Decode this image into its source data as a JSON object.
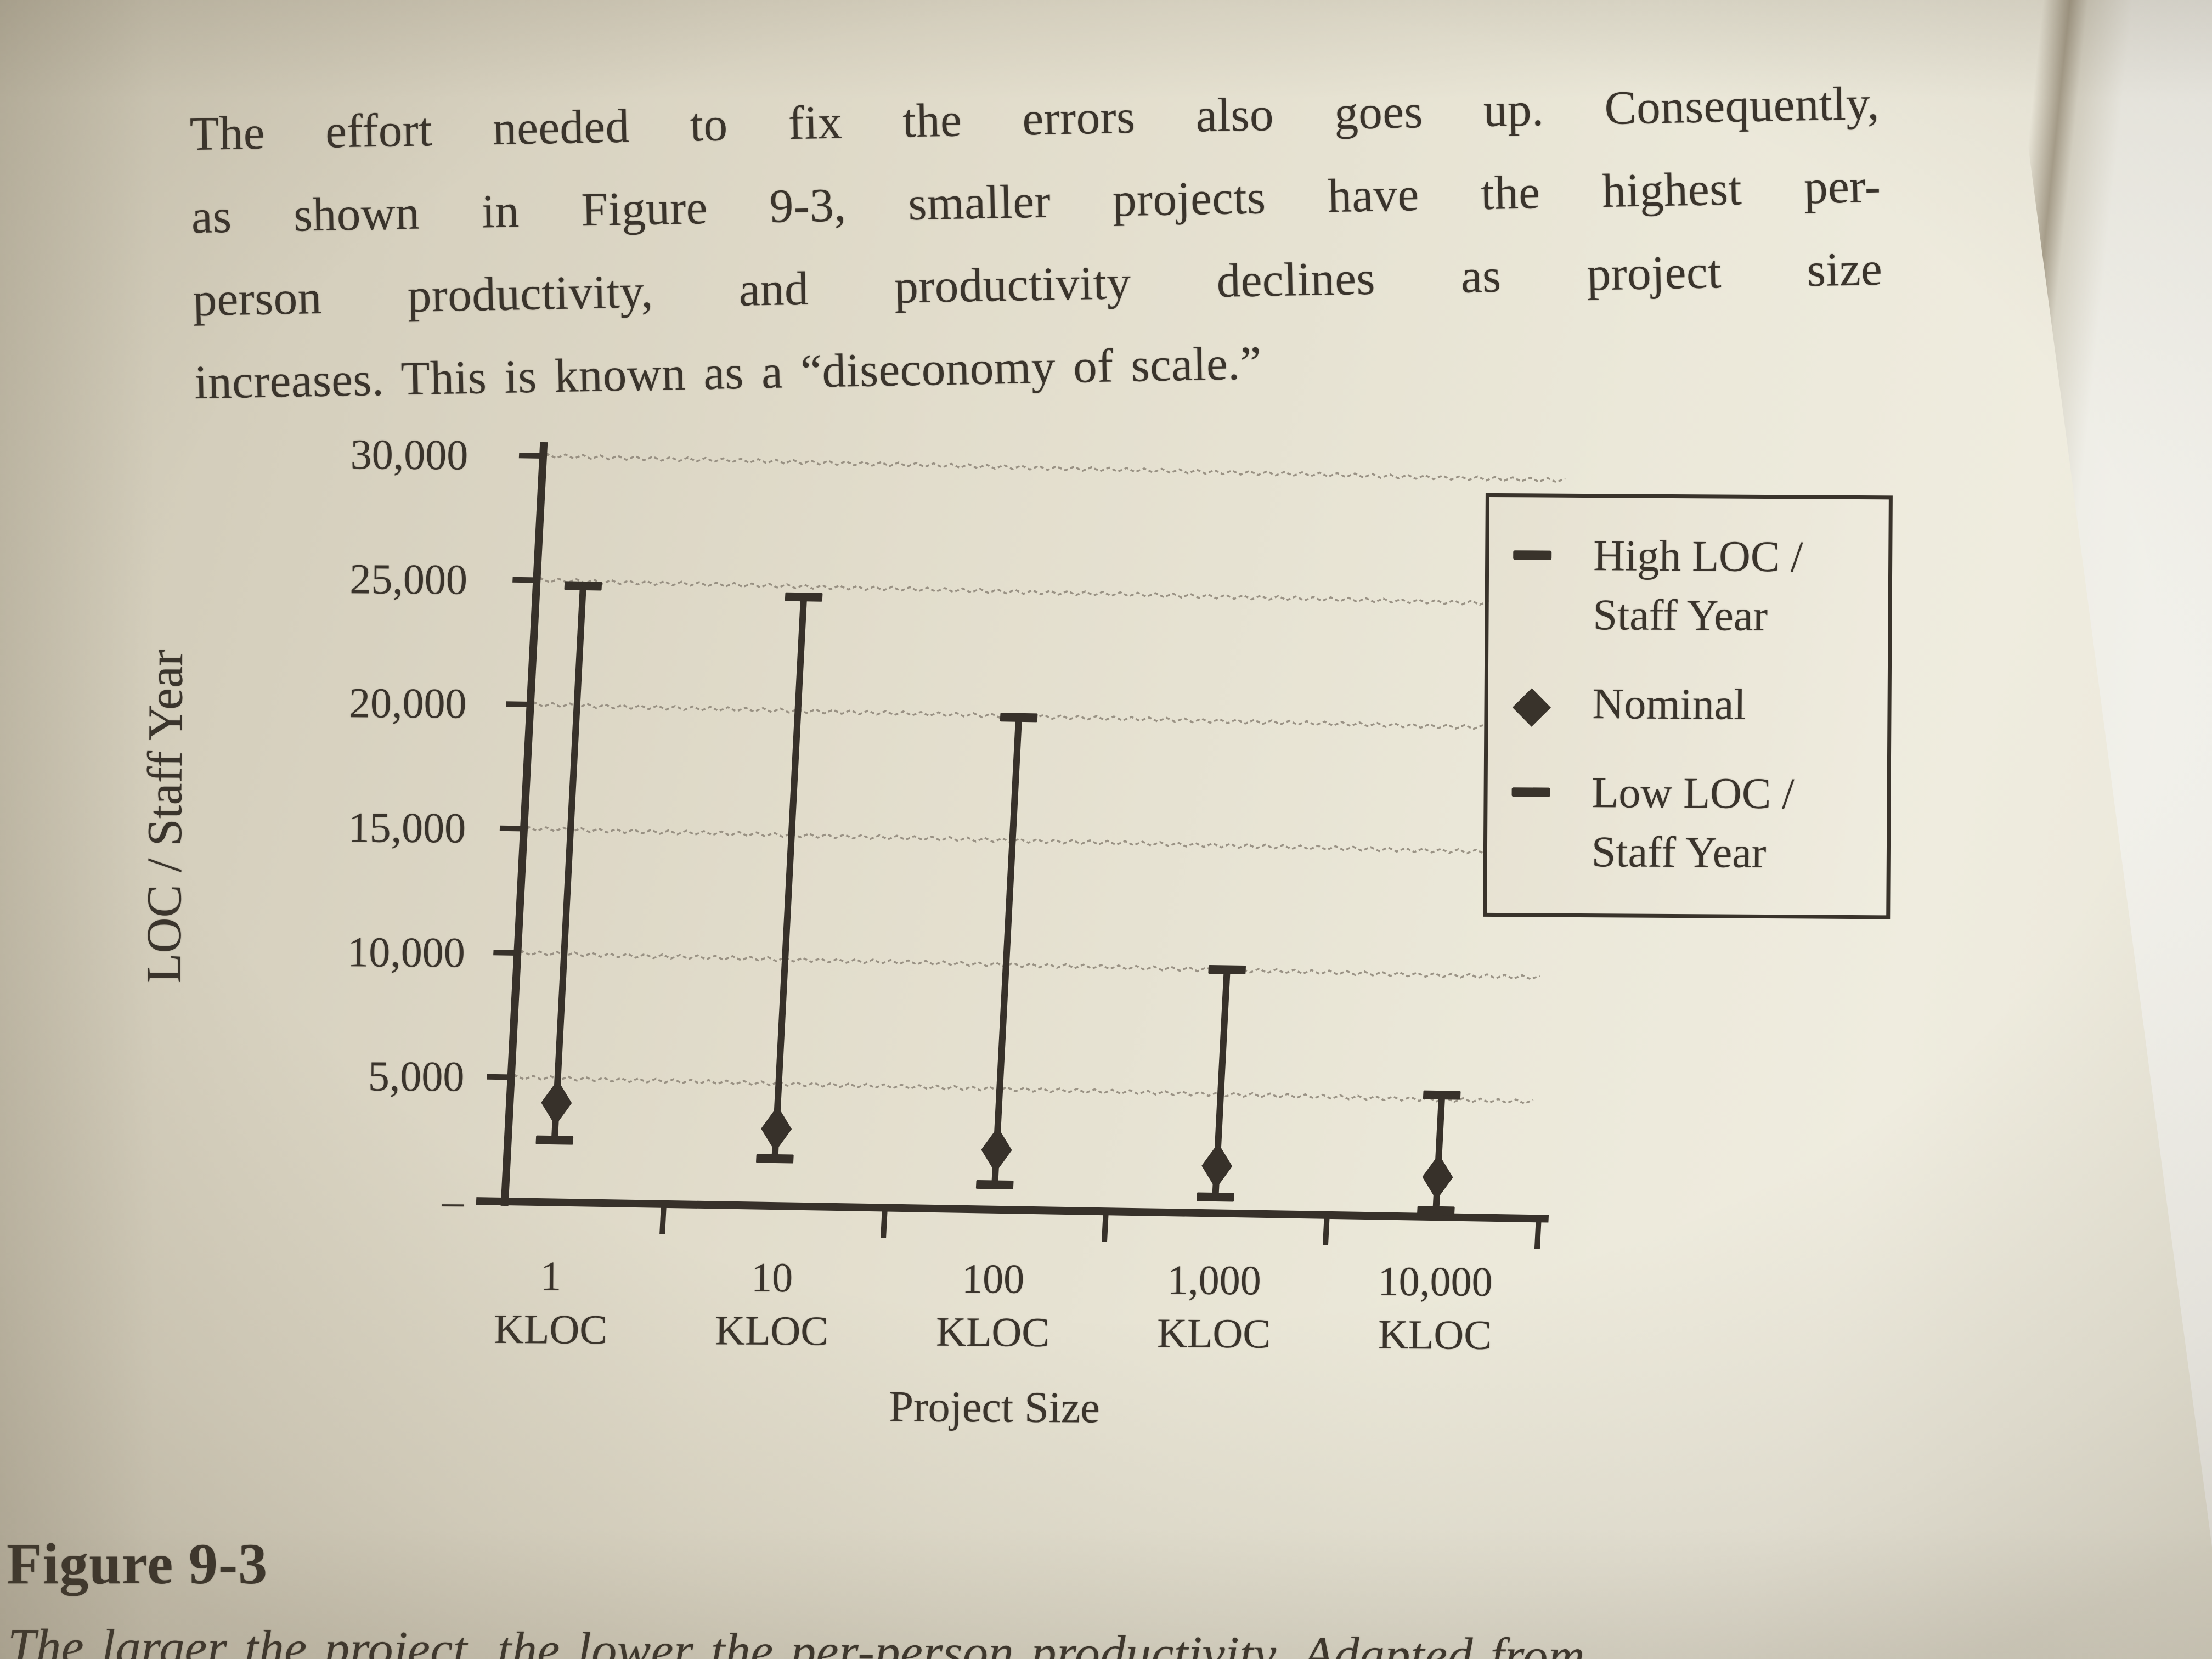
{
  "paragraph": {
    "lines": [
      "The effort needed to fix the errors also goes up. Consequently,",
      "as shown in Figure 9-3, smaller projects have the highest per-",
      "person productivity, and productivity declines as project size",
      "increases. This is known as a “diseconomy of scale.”"
    ]
  },
  "axes": {
    "y_title": "LOC / Staff Year",
    "x_title": "Project Size",
    "y_ticks": [
      "30,000",
      "25,000",
      "20,000",
      "15,000",
      "10,000",
      "5,000",
      "–"
    ],
    "x_categories": [
      {
        "value": "1",
        "unit": "KLOC"
      },
      {
        "value": "10",
        "unit": "KLOC"
      },
      {
        "value": "100",
        "unit": "KLOC"
      },
      {
        "value": "1,000",
        "unit": "KLOC"
      },
      {
        "value": "10,000",
        "unit": "KLOC"
      }
    ]
  },
  "legend": {
    "items": [
      {
        "icon": "dash-icon",
        "lines": [
          "High LOC /",
          "Staff Year"
        ]
      },
      {
        "icon": "diamond-icon",
        "lines": [
          "Nominal",
          ""
        ]
      },
      {
        "icon": "dash-icon",
        "lines": [
          "Low LOC /",
          "Staff Year"
        ]
      }
    ]
  },
  "figure": {
    "heading": "Figure 9-3",
    "caption": "The larger the project, the lower the per-person productivity. Adapted from"
  },
  "colors": {
    "ink": "#37312a",
    "grid": "#8c8477",
    "paper": "#e6e1d1"
  },
  "chart_data": {
    "type": "errorbar",
    "title": "Figure 9-3",
    "categories": [
      "1 KLOC",
      "10 KLOC",
      "100 KLOC",
      "1,000 KLOC",
      "10,000 KLOC"
    ],
    "series": [
      {
        "name": "High LOC / Staff Year",
        "marker": "dash",
        "values": [
          24800,
          24500,
          19800,
          9800,
          4900
        ]
      },
      {
        "name": "Nominal",
        "marker": "diamond",
        "values": [
          4000,
          3100,
          2400,
          1900,
          1600
        ]
      },
      {
        "name": "Low LOC / Staff Year",
        "marker": "dash",
        "values": [
          2500,
          1900,
          1000,
          650,
          250
        ]
      }
    ],
    "xlabel": "Project Size",
    "ylabel": "LOC / Staff Year",
    "ylim": [
      0,
      30000
    ],
    "ytick_step": 5000,
    "grid": true,
    "gridstyle": "dotted-wavy",
    "legend_position": "right"
  }
}
